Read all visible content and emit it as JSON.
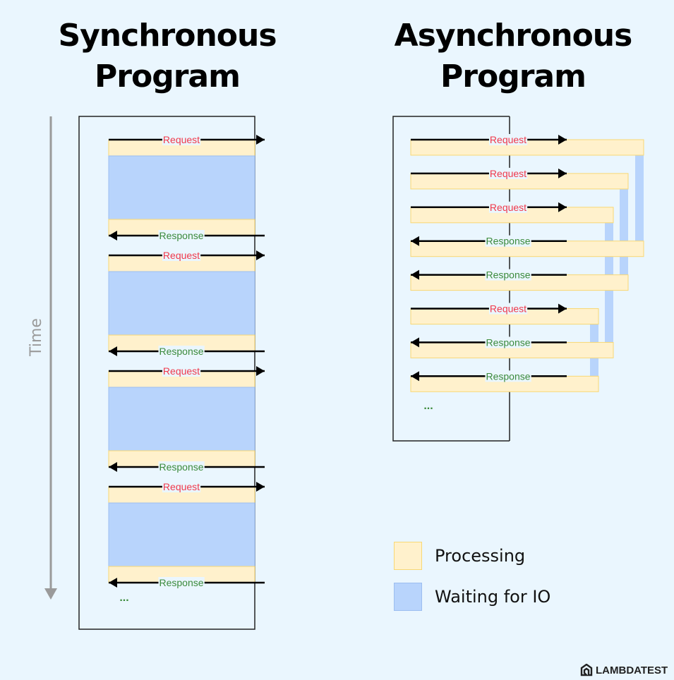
{
  "sync": {
    "title_line1": "Synchronous",
    "title_line2": "Program",
    "cycles": 4
  },
  "async": {
    "title_line1": "Asynchronous",
    "title_line2": "Program",
    "rows": [
      {
        "type": "request"
      },
      {
        "type": "request"
      },
      {
        "type": "request"
      },
      {
        "type": "response"
      },
      {
        "type": "response"
      },
      {
        "type": "request"
      },
      {
        "type": "response"
      },
      {
        "type": "response"
      }
    ]
  },
  "labels": {
    "request": "Request",
    "response": "Response",
    "ellipsis": "...",
    "time": "Time"
  },
  "legend": {
    "processing": "Processing",
    "waiting": "Waiting for IO"
  },
  "colors": {
    "processing": "#fff1cc",
    "processing_border": "#f8d874",
    "waiting": "#b8d4fc",
    "waiting_border": "#9cbef0",
    "request": "#f0394b",
    "response": "#3b8a3b",
    "time_arrow": "#9a9a9a",
    "background": "#eaf6fe"
  },
  "logo": {
    "text": "LAMBDATEST"
  }
}
